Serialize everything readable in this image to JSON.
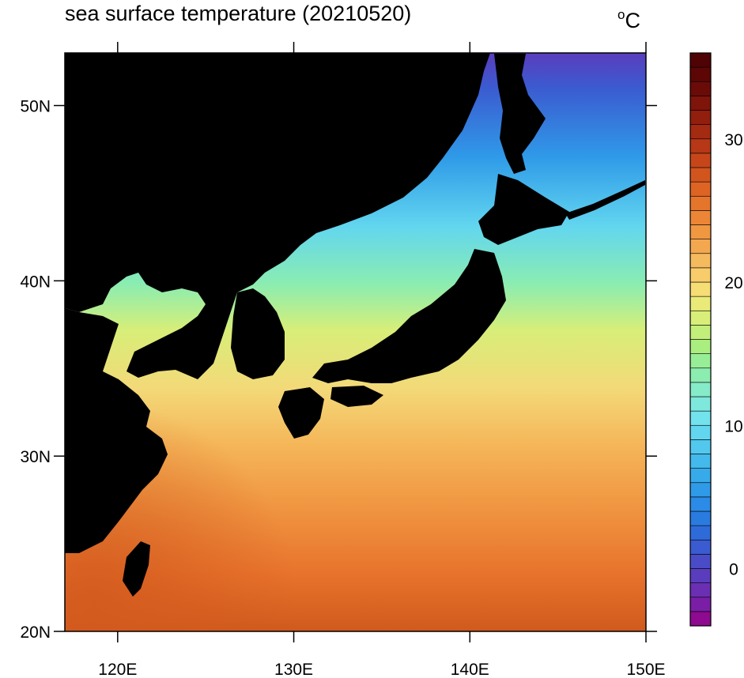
{
  "title": "sea surface temperature (20210520)",
  "units": {
    "degree": "o",
    "letter": "C"
  },
  "map": {
    "lon_range": [
      117,
      150
    ],
    "lat_range": [
      20,
      53
    ],
    "lon_ticks": [
      {
        "value": 120,
        "label": "120E"
      },
      {
        "value": 130,
        "label": "130E"
      },
      {
        "value": 140,
        "label": "140E"
      },
      {
        "value": 150,
        "label": "150E"
      }
    ],
    "lat_ticks": [
      {
        "value": 50,
        "label": "50N"
      },
      {
        "value": 40,
        "label": "40N"
      },
      {
        "value": 30,
        "label": "30N"
      },
      {
        "value": 20,
        "label": "20N"
      }
    ],
    "land_color": "#000000"
  },
  "colorbar": {
    "range": [
      -4,
      36
    ],
    "ticks": [
      {
        "value": 30,
        "label": "30"
      },
      {
        "value": 20,
        "label": "20"
      },
      {
        "value": 10,
        "label": "10"
      },
      {
        "value": 0,
        "label": "0"
      }
    ],
    "colors": [
      "#8e0a8f",
      "#7a1ea6",
      "#6a2fb3",
      "#5a3dbd",
      "#4a4cc7",
      "#3b5bd0",
      "#2f6bd8",
      "#2a7be0",
      "#2b8be6",
      "#2f9ae8",
      "#37aaea",
      "#43b9ec",
      "#52c8ee",
      "#62d6ef",
      "#72e2ec",
      "#7ee8dc",
      "#85ebc8",
      "#8bedb0",
      "#97ee96",
      "#abee80",
      "#c2ee7a",
      "#d8ee78",
      "#eaea78",
      "#f6dd74",
      "#f8cc6a",
      "#f6ba5e",
      "#f3a850",
      "#f09742",
      "#ec8636",
      "#e6752c",
      "#de6424",
      "#d3551e",
      "#c6461a",
      "#b63816",
      "#a52a12",
      "#921e0e",
      "#7f140b",
      "#6b0b08",
      "#5c0606",
      "#4f0304"
    ]
  }
}
